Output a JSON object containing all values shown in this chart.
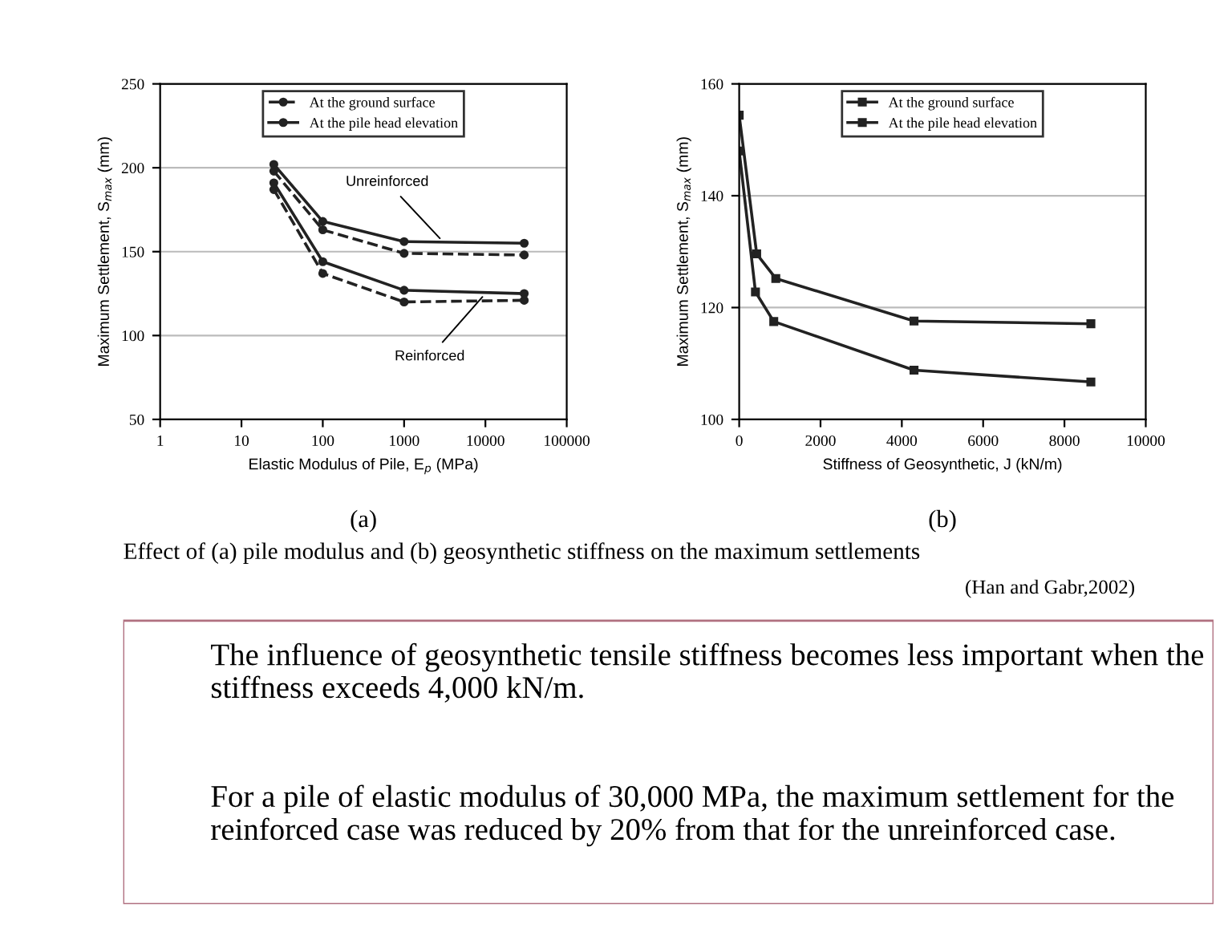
{
  "chart_data": [
    {
      "type": "line",
      "xlabel": "Elastic Modulus of Pile, E$_{p}$ (MPa)",
      "ylabel": "Maximum Settlement, S$_{max}$ (mm)",
      "subtitle": "(a)",
      "log": "x",
      "xlim": [
        1,
        100000
      ],
      "xticks": [
        1,
        10,
        100,
        1000,
        10000,
        100000
      ],
      "ylim": [
        50,
        250
      ],
      "yticks": [
        50,
        100,
        150,
        200,
        250
      ],
      "grid": "y",
      "legend": "top",
      "marker": "circle",
      "x": [
        25,
        100,
        1000,
        30000
      ],
      "series": [
        {
          "name": "At the ground surface",
          "color": "#222222",
          "line_style": "dashed",
          "values": [
            198,
            163,
            149,
            148
          ]
        },
        {
          "name": "At the pile head elevation",
          "color": "#222222",
          "line_style": "solid",
          "values": [
            202,
            168,
            156,
            155
          ]
        },
        {
          "color": "#222222",
          "line_style": "dashed",
          "values": [
            187,
            137,
            120,
            121
          ]
        },
        {
          "color": "#222222",
          "line_style": "solid",
          "values": [
            191,
            144,
            127,
            125
          ]
        }
      ],
      "annotations": [
        {
          "text": "Unreinforced",
          "x": 3000,
          "y": 156
        },
        {
          "text": "Reinforced",
          "x": 10000,
          "y": 125
        }
      ]
    },
    {
      "type": "line",
      "xlabel": "Stiffness of Geosynthetic, J (kN/m)",
      "ylabel": "Maximum Settlement, S$_{max}$ (mm)",
      "subtitle": "(b)",
      "xlim": [
        0,
        10000
      ],
      "xticks": [
        0,
        2000,
        4000,
        6000,
        8000,
        10000
      ],
      "ylim": [
        100,
        160
      ],
      "yticks": [
        100,
        120,
        140,
        160
      ],
      "grid": "y",
      "legend": "top",
      "marker": "square",
      "series": [
        {
          "name": "At the ground surface",
          "color": "#222222",
          "x": [
            0,
            430,
            900,
            4300,
            8650
          ],
          "values": [
            154.4,
            129.6,
            125.2,
            117.6,
            117.1
          ]
        },
        {
          "name": "At the pile head elevation",
          "color": "#222222",
          "x": [
            0,
            400,
            850,
            4300,
            8650
          ],
          "values": [
            148,
            122.8,
            117.5,
            108.8,
            106.7
          ]
        }
      ]
    },
    {
      "type": "other",
      "annotations": [
        "Effect of (a) pile modulus and (b) geosynthetic stiffness on the maximum settlements",
        "(Han and Gabr,2002)",
        "The influence of geosynthetic tensile stiffness becomes less important when the stiffness exceeds 4,000 kN/m.",
        "For a pile of elastic modulus of 30,000 MPa, the maximum settlement for the reinforced case was reduced by 20% from that for the unreinforced case."
      ]
    }
  ]
}
